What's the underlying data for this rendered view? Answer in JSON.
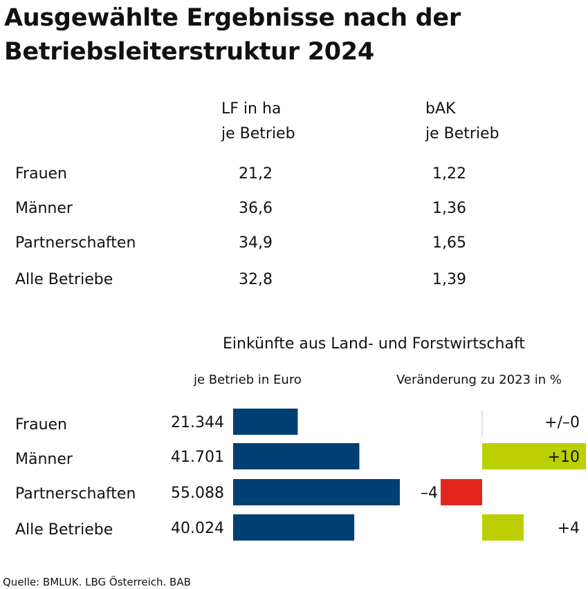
{
  "title": {
    "line1": "Ausgewählte Ergebnisse nach der",
    "line2": "Betriebsleiterstruktur 2024"
  },
  "table": {
    "col1_header": [
      "LF in ha",
      "je Betrieb"
    ],
    "col2_header": [
      "bAK",
      "je Betrieb"
    ],
    "rows": [
      {
        "label": "Frauen",
        "lf": "21,2",
        "bak": "1,22"
      },
      {
        "label": "Männer",
        "lf": "36,6",
        "bak": "1,36"
      },
      {
        "label": "Partnerschaften",
        "lf": "34,9",
        "bak": "1,65"
      },
      {
        "label": "Alle Betriebe",
        "lf": "32,8",
        "bak": "1,39"
      }
    ]
  },
  "chart_data": {
    "type": "bar",
    "title": "Einkünfte aus Land- und Forstwirtschaft",
    "categories": [
      "Frauen",
      "Männer",
      "Partnerschaften",
      "Alle Betriebe"
    ],
    "series": [
      {
        "name": "je Betrieb in Euro",
        "values": [
          21344,
          41701,
          55088,
          40024
        ],
        "labels": [
          "21.344",
          "41.701",
          "55.088",
          "40.024"
        ],
        "color": "#003f73"
      },
      {
        "name": "Veränderung zu 2023 in %",
        "values": [
          0,
          10,
          -4,
          4
        ],
        "labels": [
          "+/–0",
          "+10",
          "–4",
          "+4"
        ],
        "positive_color": "#bccf00",
        "negative_color": "#e2261c"
      }
    ]
  },
  "source": "Quelle: BMLUK. LBG Österreich. BAB"
}
